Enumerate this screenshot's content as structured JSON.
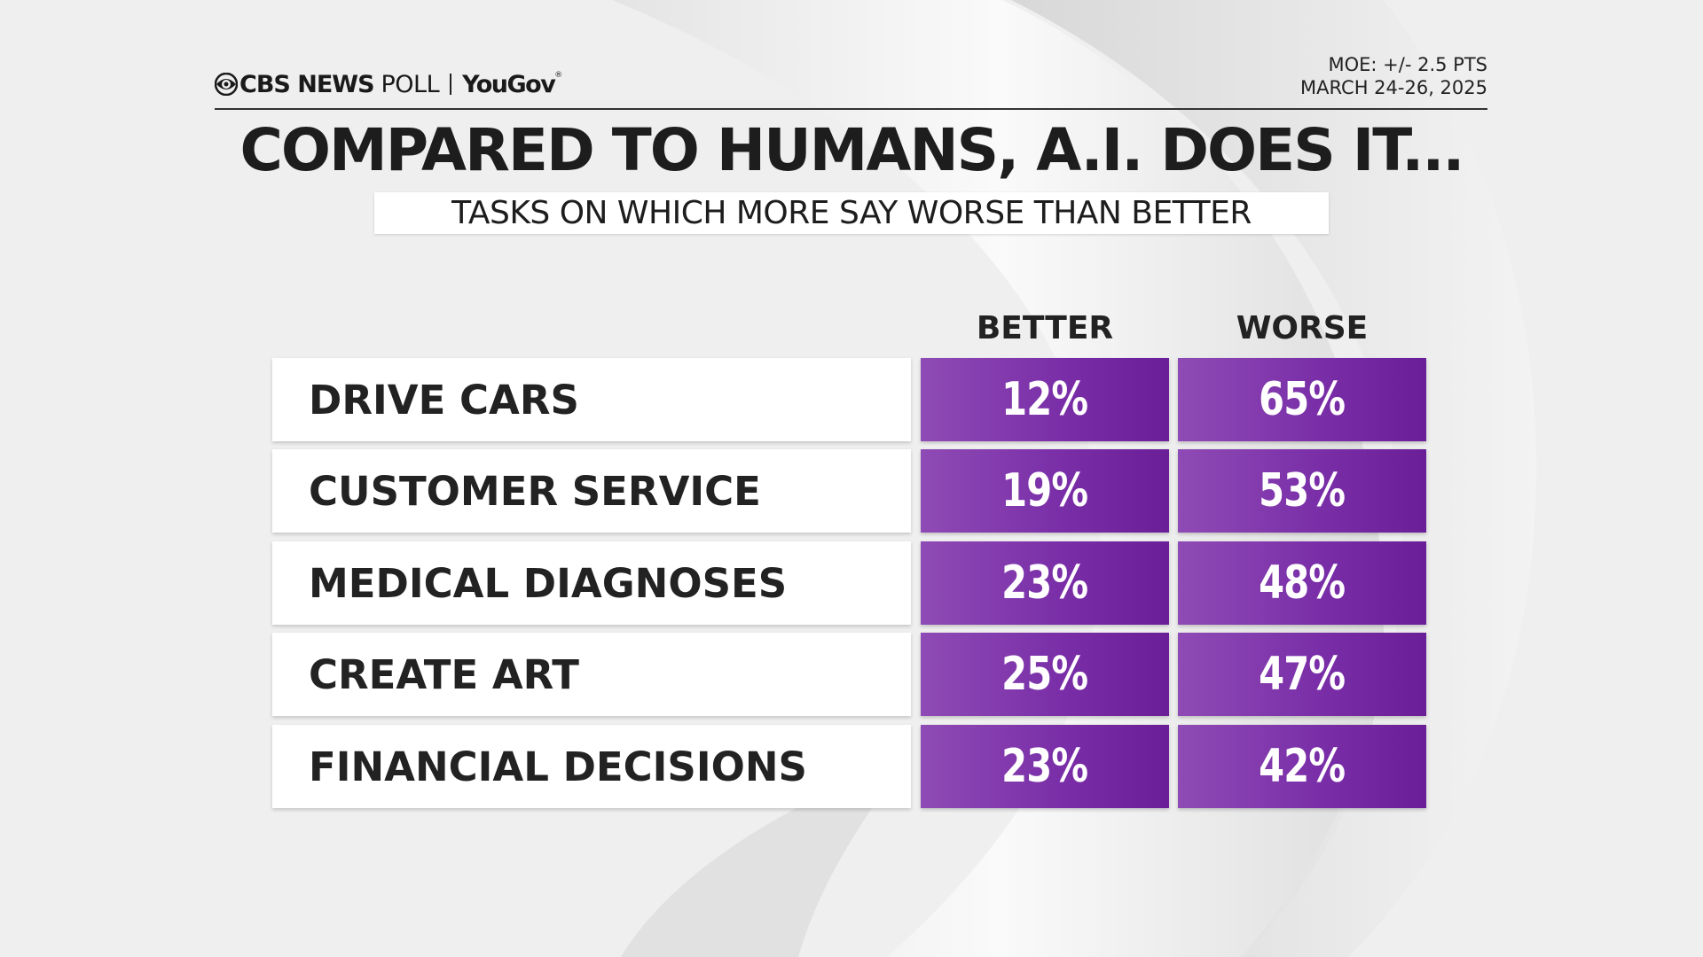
{
  "header": {
    "brand_primary": "CBS NEWS",
    "brand_secondary": "POLL",
    "partner": "YouGov",
    "partner_mark": "®",
    "moe": "MOE: +/- 2.5 PTS",
    "dates": "MARCH 24-26, 2025"
  },
  "colors": {
    "cell_purple": "#7a2fa8",
    "text_dark": "#1d1d1d",
    "background": "#efefef"
  },
  "chart_data": {
    "type": "table",
    "title": "COMPARED TO HUMANS, A.I. DOES IT...",
    "subtitle": "TASKS ON WHICH MORE SAY WORSE THAN BETTER",
    "columns": [
      "BETTER",
      "WORSE"
    ],
    "rows": [
      {
        "label": "DRIVE CARS",
        "values": [
          "12%",
          "65%"
        ]
      },
      {
        "label": "CUSTOMER SERVICE",
        "values": [
          "19%",
          "53%"
        ]
      },
      {
        "label": "MEDICAL DIAGNOSES",
        "values": [
          "23%",
          "48%"
        ]
      },
      {
        "label": "CREATE ART",
        "values": [
          "25%",
          "47%"
        ]
      },
      {
        "label": "FINANCIAL DECISIONS",
        "values": [
          "23%",
          "42%"
        ]
      }
    ]
  }
}
